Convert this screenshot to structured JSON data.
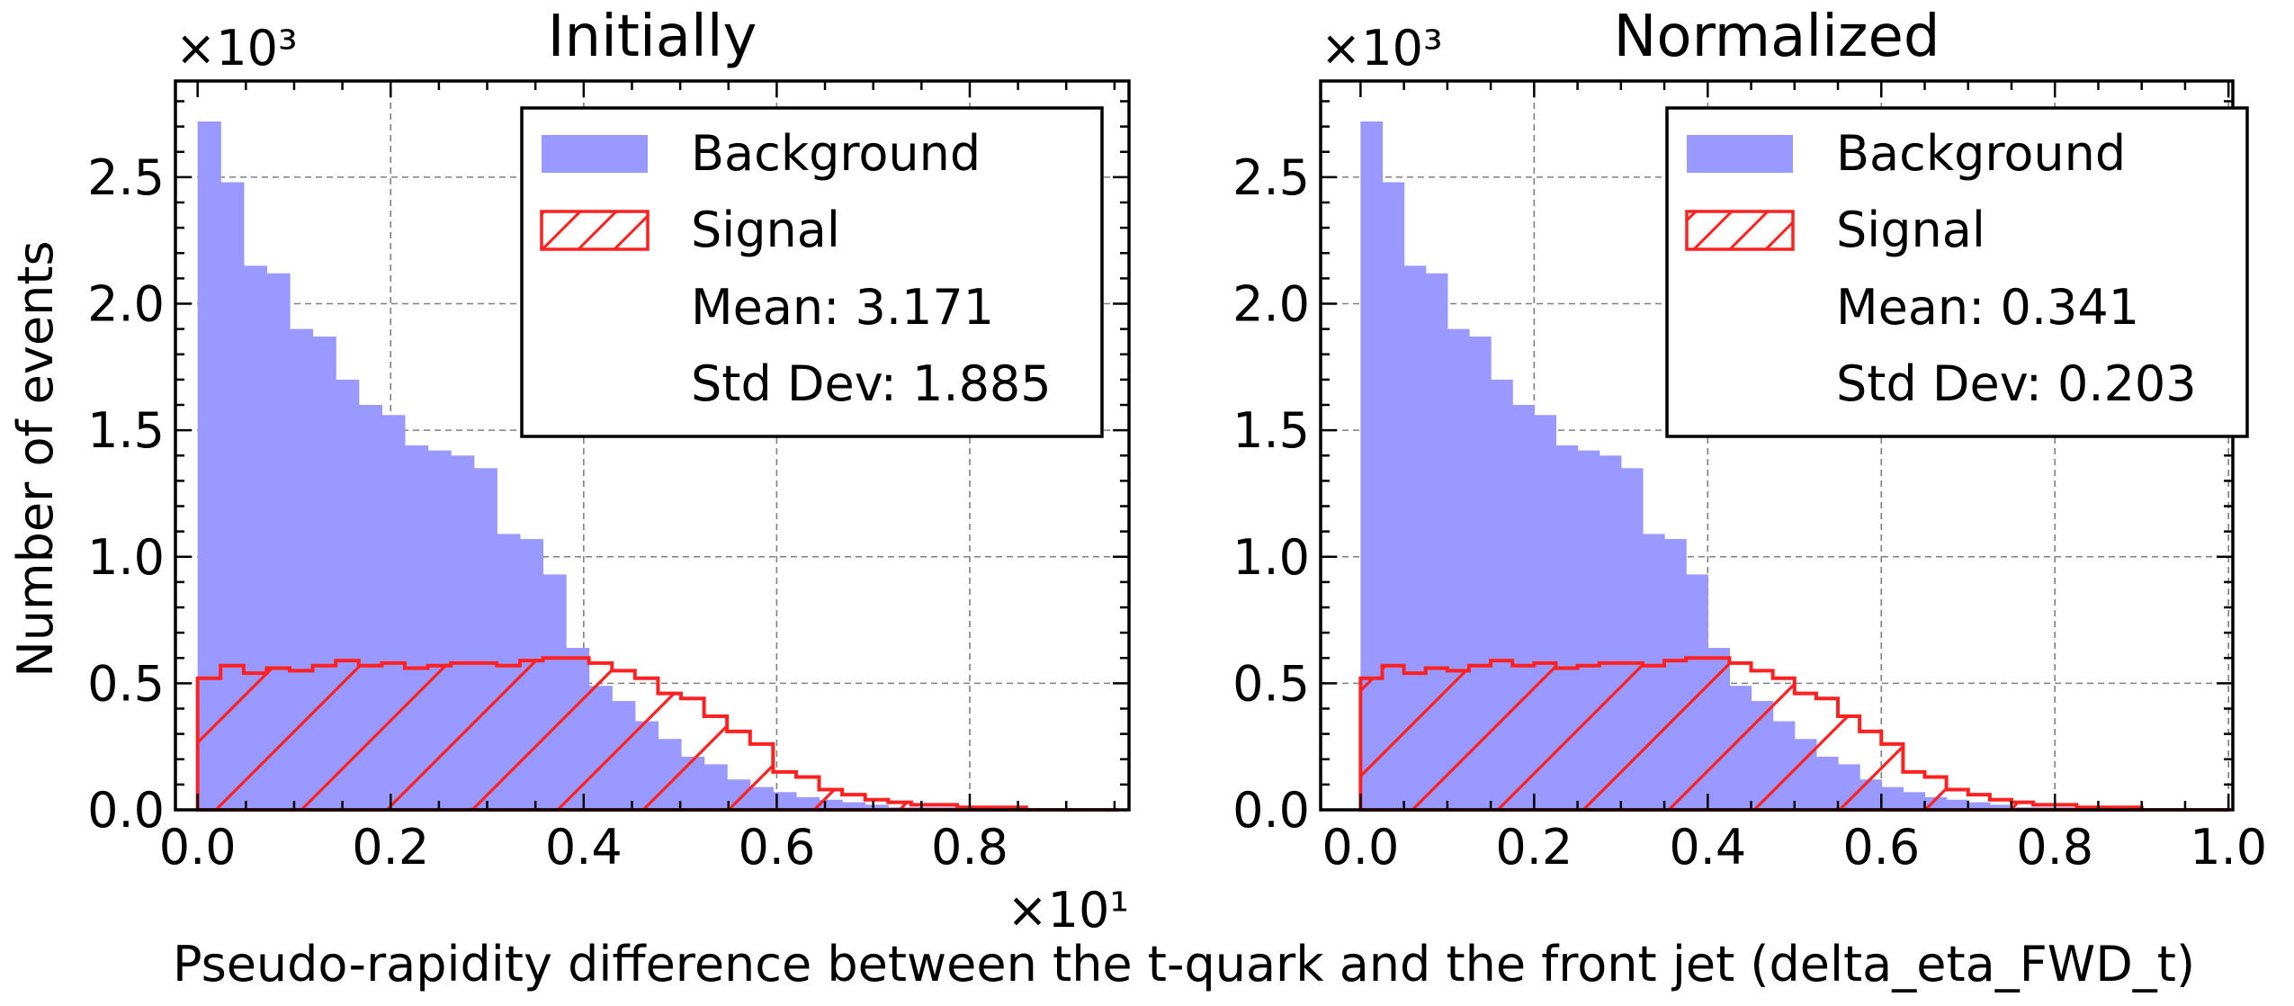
{
  "figure": {
    "xlabel": "Pseudo-rapidity difference between the t-quark and the front jet (delta_eta_FWD_t)",
    "ylabel": "Number of events",
    "colors": {
      "background": "#9999ff",
      "signal": "#ff2020",
      "grid": "#808080"
    }
  },
  "chart_data": [
    {
      "type": "bar",
      "title": "Initially",
      "ylabel": "Number of events",
      "y_multiplier": "×10³",
      "x_multiplier": "×10¹",
      "xlim": [
        -0.023,
        0.965
      ],
      "ylim": [
        0,
        2.88
      ],
      "xticks": [
        0.0,
        0.2,
        0.4,
        0.6,
        0.8
      ],
      "xtick_labels": [
        "0.0",
        "0.2",
        "0.4",
        "0.6",
        "0.8"
      ],
      "yticks": [
        0.0,
        0.5,
        1.0,
        1.5,
        2.0,
        2.5
      ],
      "ytick_labels": [
        "0.0",
        "0.5",
        "1.0",
        "1.5",
        "2.0",
        "2.5"
      ],
      "bin_edges": [
        0.0,
        0.0238,
        0.0477,
        0.0715,
        0.0954,
        0.1192,
        0.1431,
        0.1669,
        0.1908,
        0.2146,
        0.2385,
        0.2623,
        0.2862,
        0.31,
        0.3339,
        0.3577,
        0.3816,
        0.4054,
        0.4293,
        0.4531,
        0.477,
        0.5008,
        0.5247,
        0.5485,
        0.5724,
        0.5962,
        0.6201,
        0.6439,
        0.6678,
        0.6916,
        0.7155,
        0.7393,
        0.7632,
        0.787,
        0.8109,
        0.8347,
        0.8586,
        0.8824,
        0.9063,
        0.9301,
        0.954
      ],
      "series": [
        {
          "name": "Background",
          "style": "filled",
          "values": [
            2.72,
            2.48,
            2.15,
            2.12,
            1.9,
            1.87,
            1.7,
            1.6,
            1.56,
            1.44,
            1.42,
            1.4,
            1.35,
            1.09,
            1.07,
            0.93,
            0.64,
            0.49,
            0.43,
            0.35,
            0.28,
            0.21,
            0.18,
            0.12,
            0.09,
            0.07,
            0.05,
            0.04,
            0.03,
            0.02,
            0.01,
            0.01,
            0.01,
            0.0,
            0.0,
            0.0,
            0.0,
            0.0,
            0.0,
            0.0
          ]
        },
        {
          "name": "Signal",
          "style": "hatched",
          "values": [
            0.52,
            0.57,
            0.54,
            0.56,
            0.55,
            0.57,
            0.59,
            0.57,
            0.58,
            0.56,
            0.57,
            0.58,
            0.58,
            0.57,
            0.59,
            0.6,
            0.6,
            0.58,
            0.55,
            0.52,
            0.46,
            0.44,
            0.37,
            0.31,
            0.26,
            0.15,
            0.13,
            0.08,
            0.06,
            0.04,
            0.03,
            0.02,
            0.02,
            0.01,
            0.01,
            0.01,
            0.0,
            0.0,
            0.0,
            0.0
          ]
        }
      ],
      "legend": {
        "position": "top-right",
        "entries": [
          "Background",
          "Signal"
        ],
        "mean_text": "Mean: 3.171",
        "std_text": "Std Dev: 1.885"
      },
      "grid": true
    },
    {
      "type": "bar",
      "title": "Normalized",
      "y_multiplier": "×10³",
      "xlim": [
        -0.046,
        1.005
      ],
      "ylim": [
        0,
        2.88
      ],
      "xticks": [
        0.0,
        0.2,
        0.4,
        0.6,
        0.8,
        1.0
      ],
      "xtick_labels": [
        "0.0",
        "0.2",
        "0.4",
        "0.6",
        "0.8",
        "1.0"
      ],
      "yticks": [
        0.0,
        0.5,
        1.0,
        1.5,
        2.0,
        2.5
      ],
      "ytick_labels": [
        "0.0",
        "0.5",
        "1.0",
        "1.5",
        "2.0",
        "2.5"
      ],
      "bin_edges": [
        0.0,
        0.025,
        0.05,
        0.075,
        0.1,
        0.125,
        0.15,
        0.175,
        0.2,
        0.225,
        0.25,
        0.275,
        0.3,
        0.325,
        0.35,
        0.375,
        0.4,
        0.425,
        0.45,
        0.475,
        0.5,
        0.525,
        0.55,
        0.575,
        0.6,
        0.625,
        0.65,
        0.675,
        0.7,
        0.725,
        0.75,
        0.775,
        0.8,
        0.825,
        0.85,
        0.875,
        0.9,
        0.925,
        0.95,
        0.975,
        1.0
      ],
      "series": [
        {
          "name": "Background",
          "style": "filled",
          "values": [
            2.72,
            2.48,
            2.15,
            2.12,
            1.9,
            1.87,
            1.7,
            1.6,
            1.56,
            1.44,
            1.42,
            1.4,
            1.35,
            1.09,
            1.07,
            0.93,
            0.64,
            0.49,
            0.43,
            0.35,
            0.28,
            0.21,
            0.18,
            0.12,
            0.09,
            0.07,
            0.05,
            0.04,
            0.03,
            0.02,
            0.01,
            0.01,
            0.01,
            0.0,
            0.0,
            0.0,
            0.0,
            0.0,
            0.0,
            0.0
          ]
        },
        {
          "name": "Signal",
          "style": "hatched",
          "values": [
            0.52,
            0.57,
            0.54,
            0.56,
            0.55,
            0.57,
            0.59,
            0.57,
            0.58,
            0.56,
            0.57,
            0.58,
            0.58,
            0.57,
            0.59,
            0.6,
            0.6,
            0.58,
            0.55,
            0.52,
            0.46,
            0.44,
            0.37,
            0.31,
            0.26,
            0.15,
            0.13,
            0.08,
            0.06,
            0.04,
            0.03,
            0.02,
            0.02,
            0.01,
            0.01,
            0.01,
            0.0,
            0.0,
            0.0,
            0.0
          ]
        }
      ],
      "legend": {
        "position": "top-right",
        "entries": [
          "Background",
          "Signal"
        ],
        "mean_text": "Mean: 0.341",
        "std_text": "Std Dev: 0.203"
      },
      "grid": true
    }
  ]
}
